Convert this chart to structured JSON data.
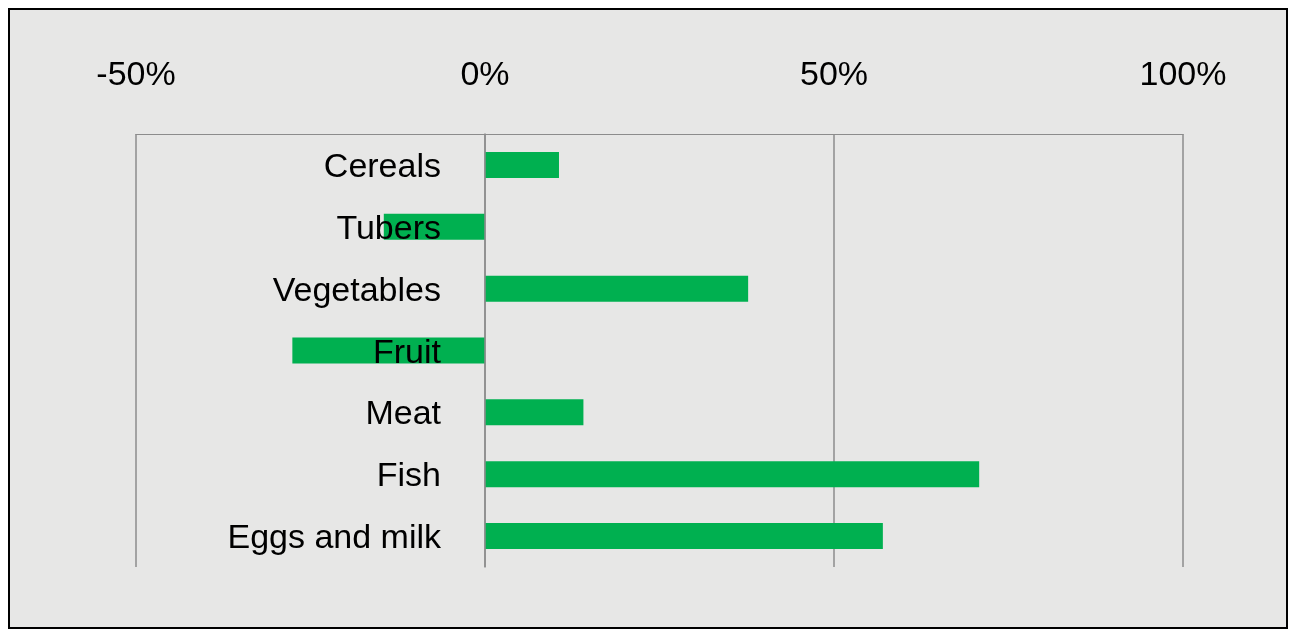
{
  "chart_data": {
    "type": "bar",
    "orientation": "horizontal",
    "categories": [
      "Cereals",
      "Tubers",
      "Vegetables",
      "Fruit",
      "Meat",
      "Fish",
      "Eggs and milk"
    ],
    "values": [
      10.6,
      -14.5,
      37.7,
      -27.6,
      14.1,
      70.8,
      57.0
    ],
    "color": "#00b050",
    "xlim": [
      -50,
      100
    ],
    "xticks": [
      {
        "value": -50,
        "label": "-50%"
      },
      {
        "value": 0,
        "label": "0%"
      },
      {
        "value": 50,
        "label": "50%"
      },
      {
        "value": 100,
        "label": "100%"
      }
    ],
    "grid": "x"
  }
}
